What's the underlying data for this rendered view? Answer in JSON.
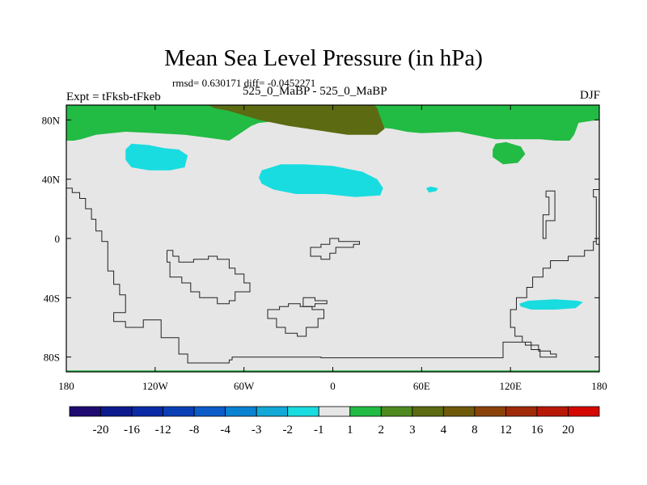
{
  "chart_data": {
    "type": "heatmap",
    "title": "Mean Sea Level Pressure (in hPa)",
    "stats_text": "rmsd= 0.630171 diff= -0.0452271",
    "left_label": "Expt = tFksb-tFkeb",
    "center_label": "525_0_MaBP - 525_0_MaBP",
    "right_label": "DJF",
    "xlim": [
      -180,
      180
    ],
    "ylim": [
      -90,
      90
    ],
    "x_ticks": [
      {
        "value": -180,
        "label": "180"
      },
      {
        "value": -120,
        "label": "120W"
      },
      {
        "value": -60,
        "label": "60W"
      },
      {
        "value": 0,
        "label": "0"
      },
      {
        "value": 60,
        "label": "60E"
      },
      {
        "value": 120,
        "label": "120E"
      },
      {
        "value": 180,
        "label": "180"
      }
    ],
    "y_ticks": [
      {
        "value": 80,
        "label": "80N"
      },
      {
        "value": 40,
        "label": "40N"
      },
      {
        "value": 0,
        "label": "0"
      },
      {
        "value": -40,
        "label": "40S"
      },
      {
        "value": -80,
        "label": "80S"
      }
    ],
    "colorbar": {
      "levels": [
        "-20",
        "-16",
        "-12",
        "-8",
        "-4",
        "-3",
        "-2",
        "-1",
        "1",
        "2",
        "3",
        "4",
        "8",
        "12",
        "16",
        "20"
      ],
      "colors": [
        "#1f0a72",
        "#0c1a8e",
        "#0a2aa6",
        "#0a3fb6",
        "#0b5cc8",
        "#0a82d2",
        "#12a8d8",
        "#19dce0",
        "#e6e6e6",
        "#22bb44",
        "#4f8a1f",
        "#5c6a12",
        "#6e5a0a",
        "#8a4208",
        "#a02a08",
        "#b81806",
        "#d40800"
      ]
    },
    "regions": [
      {
        "name": "arctic-positive-band",
        "level": "1 to 2",
        "color": "#22bb44",
        "points": [
          [
            -180,
            90
          ],
          [
            180,
            90
          ],
          [
            180,
            80
          ],
          [
            172,
            79
          ],
          [
            166,
            78
          ],
          [
            163,
            70
          ],
          [
            160,
            66
          ],
          [
            150,
            66
          ],
          [
            140,
            67
          ],
          [
            110,
            67
          ],
          [
            100,
            69
          ],
          [
            85,
            72
          ],
          [
            60,
            71
          ],
          [
            50,
            72
          ],
          [
            40,
            74
          ],
          [
            30,
            75
          ],
          [
            20,
            76
          ],
          [
            0,
            77
          ],
          [
            -20,
            78
          ],
          [
            -40,
            79
          ],
          [
            -50,
            78
          ],
          [
            -55,
            76
          ],
          [
            -70,
            66
          ],
          [
            -85,
            68
          ],
          [
            -100,
            70
          ],
          [
            -120,
            71
          ],
          [
            -140,
            72
          ],
          [
            -160,
            70
          ],
          [
            -170,
            67
          ],
          [
            -175,
            66
          ],
          [
            -180,
            66
          ]
        ]
      },
      {
        "name": "arctic-3-to-4-area",
        "level": "3 to 4",
        "color": "#5c6a12",
        "points": [
          [
            -84,
            90
          ],
          [
            28,
            90
          ],
          [
            30,
            88
          ],
          [
            32,
            82
          ],
          [
            35,
            74
          ],
          [
            30,
            70
          ],
          [
            10,
            70
          ],
          [
            -10,
            73
          ],
          [
            -30,
            76
          ],
          [
            -50,
            80
          ],
          [
            -70,
            86
          ],
          [
            -80,
            88
          ]
        ]
      },
      {
        "name": "east-asia-positive-patch",
        "level": "1 to 2",
        "color": "#22bb44",
        "points": [
          [
            108,
            60
          ],
          [
            110,
            64
          ],
          [
            117,
            65
          ],
          [
            127,
            62
          ],
          [
            130,
            57
          ],
          [
            125,
            51
          ],
          [
            115,
            50
          ],
          [
            108,
            55
          ]
        ]
      },
      {
        "name": "north-pacific-negative-cell",
        "level": "-2 to -1",
        "color": "#19dce0",
        "points": [
          [
            -140,
            60
          ],
          [
            -136,
            64
          ],
          [
            -124,
            63
          ],
          [
            -114,
            61
          ],
          [
            -104,
            60
          ],
          [
            -98,
            56
          ],
          [
            -100,
            48
          ],
          [
            -110,
            46
          ],
          [
            -124,
            46
          ],
          [
            -136,
            48
          ],
          [
            -140,
            53
          ]
        ]
      },
      {
        "name": "north-atlantic-negative-cell",
        "level": "-2 to -1",
        "color": "#19dce0",
        "points": [
          [
            -48,
            46
          ],
          [
            -50,
            41
          ],
          [
            -48,
            37
          ],
          [
            -40,
            33
          ],
          [
            -25,
            30
          ],
          [
            -5,
            30
          ],
          [
            15,
            28
          ],
          [
            32,
            29
          ],
          [
            34,
            34
          ],
          [
            30,
            40
          ],
          [
            20,
            45
          ],
          [
            0,
            49
          ],
          [
            -20,
            50
          ],
          [
            -35,
            50
          ]
        ]
      },
      {
        "name": "eurasia-small-negative-spot",
        "level": "-2 to -1",
        "color": "#19dce0",
        "points": [
          [
            63,
            34
          ],
          [
            66,
            35
          ],
          [
            71,
            34
          ],
          [
            70,
            32
          ],
          [
            65,
            31
          ]
        ]
      },
      {
        "name": "south-indian-ocean-negative-cell",
        "level": "-2 to -1",
        "color": "#19dce0",
        "points": [
          [
            126,
            -44
          ],
          [
            132,
            -42
          ],
          [
            150,
            -41
          ],
          [
            165,
            -42
          ],
          [
            169,
            -43
          ],
          [
            164,
            -47
          ],
          [
            150,
            -48
          ],
          [
            134,
            -48
          ],
          [
            127,
            -46
          ]
        ]
      },
      {
        "name": "antarctic-positive-edge",
        "level": "1 to 2",
        "color": "#22bb44",
        "points": [
          [
            -180,
            -89
          ],
          [
            180,
            -89
          ],
          [
            180,
            -90
          ],
          [
            -180,
            -90
          ]
        ]
      }
    ],
    "coastlines": [
      [
        [
          -180,
          34
        ],
        [
          -176,
          34
        ],
        [
          -176,
          31
        ],
        [
          -171,
          31
        ],
        [
          -171,
          27
        ],
        [
          -167,
          27
        ],
        [
          -167,
          20
        ],
        [
          -163,
          20
        ],
        [
          -163,
          13
        ],
        [
          -160,
          13
        ],
        [
          -160,
          5
        ],
        [
          -156,
          5
        ],
        [
          -156,
          -2
        ],
        [
          -152,
          -2
        ],
        [
          -152,
          -22
        ],
        [
          -148,
          -22
        ],
        [
          -148,
          -31
        ],
        [
          -144,
          -31
        ],
        [
          -144,
          -38
        ],
        [
          -140,
          -38
        ],
        [
          -140,
          -50
        ],
        [
          -148,
          -50
        ],
        [
          -148,
          -56
        ],
        [
          -140,
          -56
        ],
        [
          -140,
          -60
        ],
        [
          -128,
          -60
        ],
        [
          -128,
          -55
        ],
        [
          -116,
          -55
        ],
        [
          -116,
          -67
        ],
        [
          -104,
          -67
        ],
        [
          -104,
          -78
        ],
        [
          -98,
          -78
        ],
        [
          -98,
          -84
        ],
        [
          -70,
          -84
        ],
        [
          -70,
          -82
        ],
        [
          -68,
          -82
        ],
        [
          -68,
          -80
        ],
        [
          -8,
          -80
        ],
        [
          -8,
          -80.5
        ],
        [
          115,
          -80.5
        ],
        [
          115,
          -70
        ],
        [
          130,
          -70
        ],
        [
          130,
          -72
        ],
        [
          139,
          -72
        ],
        [
          139,
          -76
        ],
        [
          147,
          -76
        ],
        [
          147,
          -78
        ],
        [
          151,
          -78
        ],
        [
          151,
          -80
        ],
        [
          140,
          -80
        ],
        [
          140,
          -75
        ],
        [
          134,
          -75
        ],
        [
          134,
          -70
        ],
        [
          128,
          -70
        ],
        [
          128,
          -66
        ],
        [
          123,
          -66
        ],
        [
          123,
          -60
        ],
        [
          120,
          -60
        ],
        [
          120,
          -48
        ],
        [
          124,
          -48
        ],
        [
          124,
          -40
        ],
        [
          131,
          -40
        ],
        [
          131,
          -33
        ],
        [
          135,
          -33
        ],
        [
          135,
          -26
        ],
        [
          142,
          -26
        ],
        [
          142,
          -20
        ],
        [
          147,
          -20
        ],
        [
          147,
          -15
        ],
        [
          159,
          -15
        ],
        [
          159,
          -12
        ],
        [
          170,
          -12
        ],
        [
          170,
          -8
        ],
        [
          176,
          -8
        ],
        [
          176,
          -2
        ],
        [
          178,
          -2
        ],
        [
          178,
          -4
        ],
        [
          180,
          -4
        ]
      ],
      [
        [
          180,
          33
        ],
        [
          176,
          33
        ],
        [
          176,
          28
        ],
        [
          178,
          28
        ],
        [
          178,
          -2
        ]
      ],
      [
        [
          -112,
          -8
        ],
        [
          -112,
          -16
        ],
        [
          -110,
          -16
        ],
        [
          -110,
          -26
        ],
        [
          -102,
          -26
        ],
        [
          -102,
          -30
        ],
        [
          -96,
          -30
        ],
        [
          -96,
          -36
        ],
        [
          -90,
          -36
        ],
        [
          -90,
          -40
        ],
        [
          -78,
          -40
        ],
        [
          -78,
          -44
        ],
        [
          -70,
          -44
        ],
        [
          -70,
          -42
        ],
        [
          -66,
          -42
        ],
        [
          -66,
          -36
        ],
        [
          -56,
          -36
        ],
        [
          -56,
          -30
        ],
        [
          -60,
          -30
        ],
        [
          -60,
          -24
        ],
        [
          -66,
          -24
        ],
        [
          -66,
          -20
        ],
        [
          -70,
          -20
        ],
        [
          -70,
          -14
        ],
        [
          -78,
          -14
        ],
        [
          -78,
          -12
        ],
        [
          -84,
          -12
        ],
        [
          -84,
          -14
        ],
        [
          -94,
          -14
        ],
        [
          -94,
          -16
        ],
        [
          -104,
          -16
        ],
        [
          -104,
          -12
        ],
        [
          -108,
          -12
        ],
        [
          -108,
          -8
        ],
        [
          -112,
          -8
        ]
      ],
      [
        [
          -44,
          -50
        ],
        [
          -44,
          -54
        ],
        [
          -38,
          -54
        ],
        [
          -38,
          -60
        ],
        [
          -32,
          -60
        ],
        [
          -32,
          -64
        ],
        [
          -24,
          -64
        ],
        [
          -24,
          -66
        ],
        [
          -18,
          -66
        ],
        [
          -18,
          -60
        ],
        [
          -10,
          -60
        ],
        [
          -10,
          -54
        ],
        [
          -6,
          -54
        ],
        [
          -6,
          -48
        ],
        [
          -14,
          -48
        ],
        [
          -14,
          -46
        ],
        [
          -22,
          -46
        ],
        [
          -22,
          -44
        ],
        [
          -30,
          -44
        ],
        [
          -30,
          -46
        ],
        [
          -36,
          -46
        ],
        [
          -36,
          -48
        ],
        [
          -44,
          -48
        ],
        [
          -44,
          -50
        ]
      ],
      [
        [
          -20,
          -42
        ],
        [
          -20,
          -46
        ],
        [
          -12,
          -46
        ],
        [
          -12,
          -44
        ],
        [
          -4,
          -44
        ],
        [
          -4,
          -42
        ],
        [
          -12,
          -42
        ],
        [
          -12,
          -40
        ],
        [
          -20,
          -40
        ],
        [
          -20,
          -42
        ]
      ],
      [
        [
          -15,
          -8
        ],
        [
          -15,
          -12
        ],
        [
          -8,
          -12
        ],
        [
          -8,
          -14
        ],
        [
          -2,
          -14
        ],
        [
          -2,
          -10
        ],
        [
          2,
          -10
        ],
        [
          2,
          -6
        ],
        [
          14,
          -6
        ],
        [
          14,
          -4
        ],
        [
          18,
          -4
        ],
        [
          18,
          -2
        ],
        [
          4,
          -2
        ],
        [
          4,
          0
        ],
        [
          -2,
          0
        ],
        [
          -2,
          -4
        ],
        [
          -8,
          -4
        ],
        [
          -8,
          -6
        ],
        [
          -15,
          -6
        ],
        [
          -15,
          -8
        ]
      ],
      [
        [
          144,
          32
        ],
        [
          150,
          32
        ],
        [
          150,
          12
        ],
        [
          144,
          12
        ],
        [
          144,
          0
        ],
        [
          142,
          0
        ],
        [
          142,
          16
        ],
        [
          146,
          16
        ],
        [
          146,
          28
        ],
        [
          144,
          28
        ],
        [
          144,
          32
        ]
      ]
    ]
  }
}
